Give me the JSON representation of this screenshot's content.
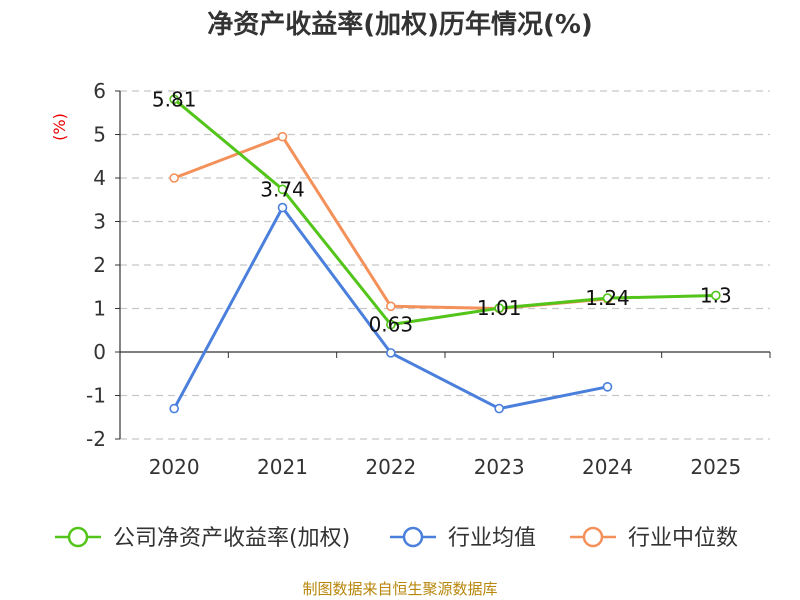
{
  "chart_data": {
    "type": "line",
    "title": "净资产收益率(加权)历年情况(%)",
    "ylabel": "(%)",
    "xlabel": "",
    "ylim": [
      -2,
      6
    ],
    "yticks": [
      -2,
      -1,
      0,
      1,
      2,
      3,
      4,
      5,
      6
    ],
    "categories": [
      "2020",
      "2021",
      "2022",
      "2023",
      "2024",
      "2025"
    ],
    "grid": true,
    "legend_position": "bottom",
    "series": [
      {
        "name": "公司净资产收益率(加权)",
        "color": "#52c41a",
        "values": [
          5.81,
          3.74,
          0.63,
          1.01,
          1.24,
          1.3
        ],
        "labels": [
          "5.81",
          "3.74",
          "0.63",
          "1.01",
          "1.24",
          "1.3"
        ]
      },
      {
        "name": "行业均值",
        "color": "#4a7fdc",
        "values": [
          -1.3,
          3.32,
          -0.02,
          -1.3,
          -0.8,
          null
        ]
      },
      {
        "name": "行业中位数",
        "color": "#f4905a",
        "values": [
          4.0,
          4.95,
          1.05,
          1.0,
          1.22,
          null
        ]
      }
    ]
  },
  "footer": {
    "source": "制图数据来自恒生聚源数据库"
  }
}
